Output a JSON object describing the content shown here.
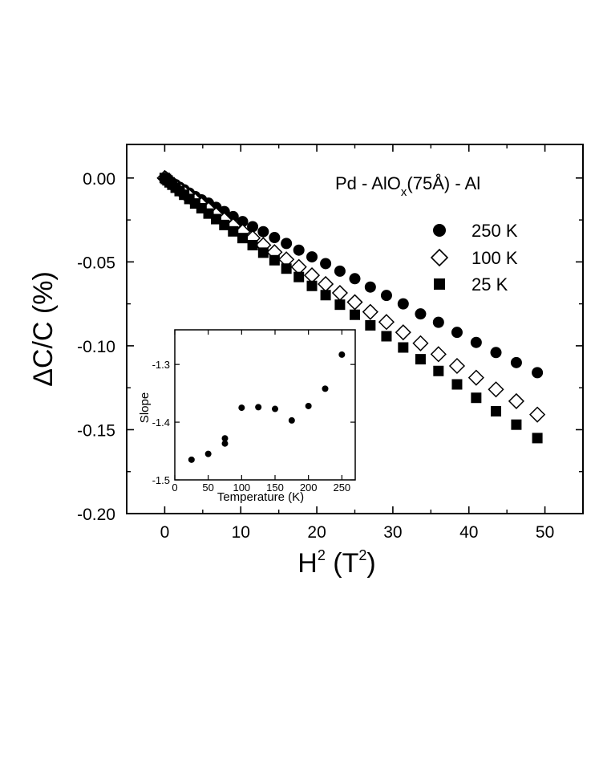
{
  "chart_data": [
    {
      "type": "scatter",
      "annotation": "Pd - AlO(75Å) - Al",
      "annotation_parts": {
        "before": "Pd - AlO",
        "subscript": "x",
        "after": "(75Å) - Al"
      },
      "xlabel": "H (T)",
      "xlabel_parts": {
        "base": "H",
        "sup1": "2",
        "mid": " (T",
        "sup2": "2",
        "end": ")"
      },
      "ylabel": "ΔC/C (%)",
      "xlim": [
        -5,
        55
      ],
      "ylim": [
        -0.2,
        0.02
      ],
      "xticks": [
        0,
        10,
        20,
        30,
        40,
        50
      ],
      "xtick_labels": [
        "0",
        "10",
        "20",
        "30",
        "40",
        "50"
      ],
      "yticks": [
        0.0,
        -0.05,
        -0.1,
        -0.15,
        -0.2
      ],
      "ytick_labels": [
        "0.00",
        "-0.05",
        "-0.10",
        "-0.15",
        "-0.20"
      ],
      "legend_placement": "right",
      "grid": false,
      "series": [
        {
          "name": "250 K",
          "marker": "filled-circle",
          "x": [
            0,
            0.16,
            0.36,
            0.64,
            1.0,
            1.44,
            1.96,
            2.56,
            3.24,
            4.0,
            4.84,
            5.76,
            6.76,
            7.84,
            9.0,
            10.24,
            11.56,
            12.96,
            14.44,
            16.0,
            17.64,
            19.36,
            21.16,
            23.04,
            25.0,
            27.04,
            29.16,
            31.36,
            33.64,
            36.0,
            38.44,
            40.96,
            43.56,
            46.24,
            49.0
          ],
          "y": [
            0,
            -0.0005,
            -0.001,
            -0.002,
            -0.003,
            -0.004,
            -0.0055,
            -0.007,
            -0.009,
            -0.011,
            -0.013,
            -0.015,
            -0.0175,
            -0.02,
            -0.023,
            -0.026,
            -0.029,
            -0.032,
            -0.0355,
            -0.039,
            -0.043,
            -0.047,
            -0.051,
            -0.0555,
            -0.06,
            -0.065,
            -0.07,
            -0.075,
            -0.081,
            -0.086,
            -0.092,
            -0.098,
            -0.104,
            -0.11,
            -0.116
          ]
        },
        {
          "name": "100 K",
          "marker": "open-diamond",
          "x": [
            0,
            0.16,
            0.36,
            0.64,
            1.0,
            1.44,
            1.96,
            2.56,
            3.24,
            4.0,
            4.84,
            5.76,
            6.76,
            7.84,
            9.0,
            10.24,
            11.56,
            12.96,
            14.44,
            16.0,
            17.64,
            19.36,
            21.16,
            23.04,
            25.0,
            27.04,
            29.16,
            31.36,
            33.64,
            36.0,
            38.44,
            40.96,
            43.56,
            46.24,
            49.0
          ],
          "y": [
            0,
            -0.0005,
            -0.0012,
            -0.0022,
            -0.0035,
            -0.005,
            -0.0068,
            -0.0088,
            -0.011,
            -0.0135,
            -0.016,
            -0.0188,
            -0.022,
            -0.025,
            -0.0285,
            -0.032,
            -0.0358,
            -0.04,
            -0.0442,
            -0.0485,
            -0.053,
            -0.058,
            -0.0632,
            -0.0685,
            -0.074,
            -0.0798,
            -0.0858,
            -0.092,
            -0.0985,
            -0.105,
            -0.112,
            -0.119,
            -0.126,
            -0.133,
            -0.141
          ]
        },
        {
          "name": "25 K",
          "marker": "filled-square",
          "x": [
            0,
            0.16,
            0.36,
            0.64,
            1.0,
            1.44,
            1.96,
            2.56,
            3.24,
            4.0,
            4.84,
            5.76,
            6.76,
            7.84,
            9.0,
            10.24,
            11.56,
            12.96,
            14.44,
            16.0,
            17.64,
            19.36,
            21.16,
            23.04,
            25.0,
            27.04,
            29.16,
            31.36,
            33.64,
            36.0,
            38.44,
            40.96,
            43.56,
            46.24,
            49.0
          ],
          "y": [
            0,
            -0.0006,
            -0.0014,
            -0.0026,
            -0.004,
            -0.0058,
            -0.0078,
            -0.01,
            -0.0125,
            -0.0152,
            -0.018,
            -0.0212,
            -0.0245,
            -0.028,
            -0.0318,
            -0.0358,
            -0.04,
            -0.0445,
            -0.049,
            -0.054,
            -0.059,
            -0.0643,
            -0.0698,
            -0.0755,
            -0.0815,
            -0.0878,
            -0.0943,
            -0.101,
            -0.108,
            -0.115,
            -0.123,
            -0.131,
            -0.139,
            -0.147,
            -0.155
          ]
        }
      ]
    },
    {
      "type": "scatter",
      "inset": true,
      "xlabel": "Temperature (K)",
      "ylabel": "Slope",
      "xlim": [
        0,
        270
      ],
      "ylim": [
        -1.5,
        -1.24
      ],
      "xticks": [
        0,
        50,
        100,
        150,
        200,
        250
      ],
      "xtick_labels": [
        "0",
        "50",
        "100",
        "150",
        "200",
        "250"
      ],
      "yticks": [
        -1.3,
        -1.4,
        -1.5
      ],
      "ytick_labels": [
        "-1.3",
        "-1.4",
        "-1.5"
      ],
      "grid": false,
      "series": [
        {
          "marker": "filled-circle",
          "x": [
            25,
            50,
            75,
            75,
            100,
            125,
            150,
            175,
            200,
            225,
            250
          ],
          "y": [
            -1.465,
            -1.455,
            -1.437,
            -1.428,
            -1.375,
            -1.374,
            -1.377,
            -1.397,
            -1.372,
            -1.342,
            -1.283
          ]
        }
      ]
    }
  ]
}
